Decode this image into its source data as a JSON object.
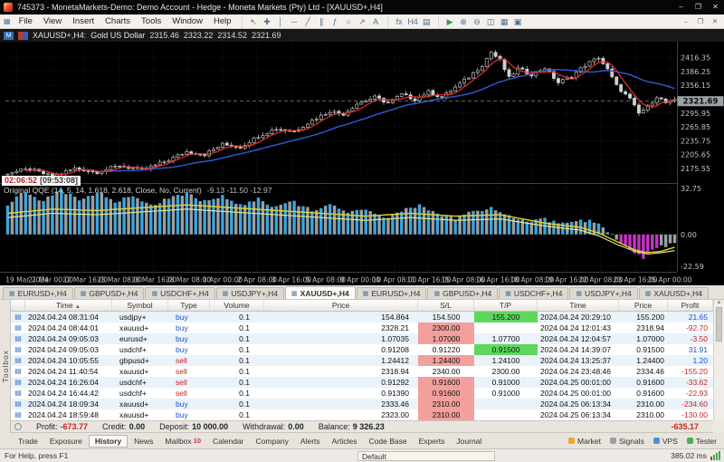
{
  "window": {
    "title": "745373 - MonetaMarkets-Demo: Demo Account - Hedge - Moneta Markets (Pty) Ltd - [XAUUSD+,H4]",
    "controls": [
      {
        "name": "minimize-button",
        "glyph": "–"
      },
      {
        "name": "maximize-button",
        "glyph": "❐"
      },
      {
        "name": "close-button",
        "glyph": "✕"
      }
    ]
  },
  "menu": {
    "items": [
      "File",
      "View",
      "Insert",
      "Charts",
      "Tools",
      "Window",
      "Help"
    ],
    "window_controls": [
      {
        "name": "chart-minimize-button",
        "glyph": "–"
      },
      {
        "name": "chart-restore-button",
        "glyph": "❐"
      },
      {
        "name": "chart-close-button",
        "glyph": "✕"
      }
    ]
  },
  "toolbar": {
    "groups": [
      {
        "items": [
          {
            "name": "cursor-icon",
            "glyph": "↖"
          },
          {
            "name": "crosshair-icon",
            "glyph": "✚"
          },
          {
            "name": "vertical-line-icon",
            "glyph": "│"
          },
          {
            "name": "horizontal-line-icon",
            "glyph": "─"
          },
          {
            "name": "trendline-icon",
            "glyph": "╱"
          },
          {
            "name": "channel-icon",
            "glyph": "∥"
          },
          {
            "name": "fibonacci-icon",
            "glyph": "ƒ"
          },
          {
            "name": "ellipse-icon",
            "glyph": "○"
          },
          {
            "name": "arrow-icon",
            "glyph": "↗"
          },
          {
            "name": "text-icon",
            "glyph": "A"
          }
        ]
      },
      {
        "items": [
          {
            "name": "indicators-icon",
            "glyph": "fx"
          },
          {
            "name": "timeframes-icon",
            "glyph": "H4"
          },
          {
            "name": "templates-icon",
            "glyph": "▤"
          }
        ]
      },
      {
        "items": [
          {
            "name": "algo-trading-icon",
            "glyph": "▶",
            "color": "#2e9e44"
          },
          {
            "name": "zoom-in-icon",
            "glyph": "⊕"
          },
          {
            "name": "zoom-out-icon",
            "glyph": "⊖"
          },
          {
            "name": "tile-windows-icon",
            "glyph": "◫"
          },
          {
            "name": "new-chart-icon",
            "glyph": "▦"
          },
          {
            "name": "data-window-icon",
            "glyph": "▣"
          }
        ]
      }
    ]
  },
  "quotebar": {
    "badge1": "M",
    "symbol": "XAUUSD+,H4:",
    "description": "Gold US Dollar",
    "open": "2315.46",
    "high": "2323.22",
    "low": "2314.52",
    "close": "2321.69"
  },
  "chart": {
    "countdown_time": "02:06:52",
    "countdown_session": "[09:53:08]",
    "current_price": "2321.69",
    "price_axis": [
      "2416.35",
      "2386.25",
      "2356.15",
      "2326.05",
      "2295.95",
      "2265.85",
      "2235.75",
      "2205.65",
      "2175.55"
    ],
    "x_axis": [
      "19 Mar 2024",
      "21 Mar 00:00",
      "22 Mar 16:00",
      "25 Mar 08:00",
      "26 Mar 16:00",
      "28 Mar 08:00",
      "1 Apr 00:00",
      "2 Apr 08:00",
      "3 Apr 16:00",
      "5 Apr 08:00",
      "9 Apr 00:00",
      "10 Apr 08:00",
      "11 Apr 16:00",
      "15 Apr 08:00",
      "16 Apr 16:00",
      "18 Apr 08:00",
      "19 Apr 16:00",
      "22 Apr 08:00",
      "23 Apr 16:00",
      "25 Apr 00:00"
    ],
    "indicator": {
      "label": "Original QQE (14, 5, 14, 1.618, 2.618, Close, No, Current)",
      "values": "-9.13 -11.50 -12.97",
      "axis": [
        "32.75",
        "0.00",
        "-22.59"
      ]
    }
  },
  "chart_data": {
    "type": "candlestick",
    "bars": 150,
    "ylim": [
      2150,
      2445
    ],
    "price_anchors": [
      [
        0,
        2166
      ],
      [
        5,
        2174
      ],
      [
        10,
        2158
      ],
      [
        15,
        2176
      ],
      [
        20,
        2168
      ],
      [
        25,
        2182
      ],
      [
        30,
        2172
      ],
      [
        35,
        2190
      ],
      [
        40,
        2212
      ],
      [
        44,
        2206
      ],
      [
        48,
        2228
      ],
      [
        52,
        2222
      ],
      [
        56,
        2246
      ],
      [
        60,
        2262
      ],
      [
        64,
        2256
      ],
      [
        68,
        2280
      ],
      [
        72,
        2300
      ],
      [
        75,
        2294
      ],
      [
        78,
        2316
      ],
      [
        82,
        2330
      ],
      [
        85,
        2318
      ],
      [
        88,
        2336
      ],
      [
        91,
        2326
      ],
      [
        94,
        2342
      ],
      [
        97,
        2330
      ],
      [
        100,
        2352
      ],
      [
        103,
        2374
      ],
      [
        106,
        2400
      ],
      [
        108,
        2428
      ],
      [
        110,
        2410
      ],
      [
        112,
        2372
      ],
      [
        114,
        2392
      ],
      [
        117,
        2380
      ],
      [
        120,
        2394
      ],
      [
        123,
        2362
      ],
      [
        126,
        2376
      ],
      [
        129,
        2400
      ],
      [
        132,
        2417
      ],
      [
        134,
        2390
      ],
      [
        136,
        2355
      ],
      [
        139,
        2326
      ],
      [
        141,
        2295
      ],
      [
        143,
        2310
      ],
      [
        145,
        2332
      ],
      [
        147,
        2318
      ],
      [
        149,
        2322
      ]
    ],
    "ma_fast_period": 5,
    "ma_slow_period": 21,
    "ilim": [
      -24,
      34
    ],
    "hist_anchors": [
      [
        0,
        22
      ],
      [
        4,
        30
      ],
      [
        8,
        24
      ],
      [
        12,
        31
      ],
      [
        16,
        25
      ],
      [
        20,
        30
      ],
      [
        24,
        22
      ],
      [
        28,
        28
      ],
      [
        32,
        20
      ],
      [
        36,
        26
      ],
      [
        40,
        29
      ],
      [
        44,
        23
      ],
      [
        48,
        27
      ],
      [
        52,
        21
      ],
      [
        56,
        25
      ],
      [
        60,
        19
      ],
      [
        64,
        23
      ],
      [
        68,
        17
      ],
      [
        72,
        21
      ],
      [
        76,
        15
      ],
      [
        80,
        19
      ],
      [
        84,
        12
      ],
      [
        88,
        16
      ],
      [
        92,
        21
      ],
      [
        96,
        15
      ],
      [
        100,
        11
      ],
      [
        104,
        16
      ],
      [
        108,
        20
      ],
      [
        112,
        14
      ],
      [
        116,
        9
      ],
      [
        120,
        11
      ],
      [
        124,
        7
      ],
      [
        128,
        9
      ],
      [
        130,
        11
      ],
      [
        132,
        8
      ],
      [
        134,
        3
      ],
      [
        136,
        -3
      ],
      [
        138,
        -9
      ],
      [
        140,
        -14
      ],
      [
        142,
        -16
      ],
      [
        144,
        -12
      ],
      [
        146,
        -9
      ],
      [
        148,
        -7
      ],
      [
        149,
        -6
      ]
    ],
    "qqe_fast_anchors": [
      [
        0,
        15
      ],
      [
        10,
        18
      ],
      [
        20,
        17
      ],
      [
        30,
        19
      ],
      [
        40,
        21
      ],
      [
        50,
        19
      ],
      [
        60,
        17
      ],
      [
        70,
        15
      ],
      [
        80,
        13
      ],
      [
        90,
        15
      ],
      [
        100,
        13
      ],
      [
        110,
        14
      ],
      [
        120,
        8
      ],
      [
        128,
        5
      ],
      [
        132,
        1
      ],
      [
        136,
        -5
      ],
      [
        140,
        -11
      ],
      [
        143,
        -13
      ],
      [
        146,
        -12
      ],
      [
        149,
        -9.1
      ]
    ],
    "qqe_slow_anchors": [
      [
        0,
        12
      ],
      [
        10,
        15
      ],
      [
        20,
        14
      ],
      [
        30,
        16
      ],
      [
        40,
        18
      ],
      [
        50,
        16
      ],
      [
        60,
        14
      ],
      [
        70,
        12
      ],
      [
        80,
        10
      ],
      [
        90,
        12
      ],
      [
        100,
        10
      ],
      [
        110,
        11
      ],
      [
        120,
        6
      ],
      [
        128,
        3
      ],
      [
        132,
        -1
      ],
      [
        136,
        -7
      ],
      [
        140,
        -12
      ],
      [
        143,
        -14
      ],
      [
        146,
        -13
      ],
      [
        149,
        -11.5
      ]
    ],
    "magenta_range": [
      137,
      145
    ],
    "colors": {
      "up": "#0b0b0b",
      "down": "#cfcfcf",
      "wick": "#cfcfcf",
      "ma_fast": "#e8302a",
      "ma_slow": "#2f55cc",
      "hist_blue": "#3aa6de",
      "hist_gray": "#9a9fa4",
      "hist_magenta": "#c433c4",
      "qqe_fast": "#e6d22e",
      "qqe_slow": "#efe98f",
      "grid": "#262626",
      "axis_text": "#c4c4c4",
      "current": "#9aa0a5"
    }
  },
  "chart_tabs": {
    "icon_glyph": "▦",
    "active_index": 4,
    "tabs": [
      "EURUSD+,H4",
      "GBPUSD+,H4",
      "USDCHF+,H4",
      "USDJPY+,H4",
      "XAUUSD+,H4",
      "EURUSD+,H4",
      "GBPUSD+,H4",
      "USDCHF+,H4",
      "USDJPY+,H4",
      "XAUUSD+,H4"
    ]
  },
  "toolbox": {
    "vertical_tab": "Toolbox",
    "sort_glyph": "▲",
    "row_icon_glyph": "▤",
    "columns": [
      "Time",
      "Symbol",
      "Type",
      "Volume",
      "Price",
      "S/L",
      "T/P",
      "Time",
      "Price",
      "Profit"
    ],
    "rows": [
      {
        "open_time": "2024.04.24 08:31:04",
        "symbol": "usdjpy+",
        "type": "buy",
        "volume": "0.1",
        "price": "154.864",
        "sl": "154.500",
        "tp": "155.200",
        "sl_hit": false,
        "tp_hit": true,
        "close_time": "2024.04.24 20:29:10",
        "close_price": "155.200",
        "profit": "21.65"
      },
      {
        "open_time": "2024.04.24 08:44:01",
        "symbol": "xauusd+",
        "type": "buy",
        "volume": "0.1",
        "price": "2328.21",
        "sl": "2300.00",
        "tp": "",
        "sl_hit": true,
        "tp_hit": false,
        "close_time": "2024.04.24 12:01:43",
        "close_price": "2318.94",
        "profit": "-92.70"
      },
      {
        "open_time": "2024.04.24 09:05:03",
        "symbol": "eurusd+",
        "type": "buy",
        "volume": "0.1",
        "price": "1.07035",
        "sl": "1.07000",
        "tp": "1.07700",
        "sl_hit": true,
        "tp_hit": false,
        "close_time": "2024.04.24 12:04:57",
        "close_price": "1.07000",
        "profit": "-3.50"
      },
      {
        "open_time": "2024.04.24 09:05:03",
        "symbol": "usdchf+",
        "type": "buy",
        "volume": "0.1",
        "price": "0.91208",
        "sl": "0.91220",
        "tp": "0.91500",
        "sl_hit": false,
        "tp_hit": true,
        "close_time": "2024.04.24 14:39:07",
        "close_price": "0.91500",
        "profit": "31.91"
      },
      {
        "open_time": "2024.04.24 10:05:55",
        "symbol": "gbpusd+",
        "type": "sell",
        "volume": "0.1",
        "price": "1.24412",
        "sl": "1.24400",
        "tp": "1.24100",
        "sl_hit": true,
        "tp_hit": false,
        "close_time": "2024.04.24 13:25:37",
        "close_price": "1.24400",
        "profit": "1.20"
      },
      {
        "open_time": "2024.04.24 11:40:54",
        "symbol": "xauusd+",
        "type": "sell",
        "volume": "0.1",
        "price": "2318.94",
        "sl": "2340.00",
        "tp": "2300.00",
        "sl_hit": false,
        "tp_hit": false,
        "close_time": "2024.04.24 23:48:46",
        "close_price": "2334.46",
        "profit": "-155.20"
      },
      {
        "open_time": "2024.04.24 16:26:04",
        "symbol": "usdchf+",
        "type": "sell",
        "volume": "0.1",
        "price": "0.91292",
        "sl": "0.91600",
        "tp": "0.91000",
        "sl_hit": true,
        "tp_hit": false,
        "close_time": "2024.04.25 00:01:00",
        "close_price": "0.91600",
        "profit": "-33.62"
      },
      {
        "open_time": "2024.04.24 16:44:42",
        "symbol": "usdchf+",
        "type": "sell",
        "volume": "0.1",
        "price": "0.91390",
        "sl": "0.91600",
        "tp": "0.91000",
        "sl_hit": true,
        "tp_hit": false,
        "close_time": "2024.04.25 00:01:00",
        "close_price": "0.91600",
        "profit": "-22.93"
      },
      {
        "open_time": "2024.04.24 18:09:34",
        "symbol": "xauusd+",
        "type": "buy",
        "volume": "0.1",
        "price": "2333.46",
        "sl": "2310.00",
        "tp": "",
        "sl_hit": true,
        "tp_hit": false,
        "close_time": "2024.04.25 06:13:34",
        "close_price": "2310.00",
        "profit": "-234.60"
      },
      {
        "open_time": "2024.04.24 18:59:48",
        "symbol": "xauusd+",
        "type": "buy",
        "volume": "0.1",
        "price": "2323.00",
        "sl": "2310.00",
        "tp": "",
        "sl_hit": true,
        "tp_hit": false,
        "close_time": "2024.04.25 06:13:34",
        "close_price": "2310.00",
        "profit": "-130.00"
      }
    ],
    "summary": {
      "pairs": [
        {
          "label": "Profit:",
          "value": "-673.77"
        },
        {
          "label": "Credit:",
          "value": "0.00"
        },
        {
          "label": "Deposit:",
          "value": "10 000.00"
        },
        {
          "label": "Withdrawal:",
          "value": "0.00"
        },
        {
          "label": "Balance:",
          "value": "9 326.23"
        }
      ],
      "total": "-635.17"
    },
    "tabs": [
      "Trade",
      "Exposure",
      "History",
      "News",
      "Mailbox",
      "Calendar",
      "Company",
      "Alerts",
      "Articles",
      "Code Base",
      "Experts",
      "Journal"
    ],
    "active_tab": "History",
    "mailbox_badge": "10",
    "right_items": [
      {
        "name": "market",
        "label": "Market",
        "color": "#f0a828"
      },
      {
        "name": "signals",
        "label": "Signals",
        "color": "#9aa0a6"
      },
      {
        "name": "vps",
        "label": "VPS",
        "color": "#4a90d9"
      },
      {
        "name": "tester",
        "label": "Tester",
        "color": "#4caf50"
      }
    ]
  },
  "statusbar": {
    "help": "For Help, press F1",
    "profile": "Default",
    "latency": "385.02 ms",
    "bars": [
      "#c0392b",
      "#3fae49",
      "#3fae49",
      "#3fae49"
    ]
  }
}
